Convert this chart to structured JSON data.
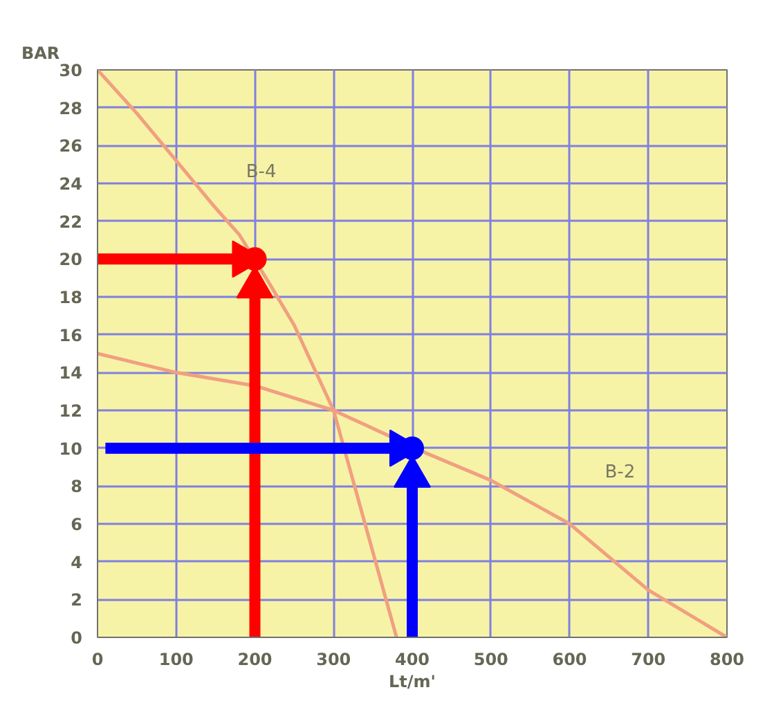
{
  "chart_data": {
    "type": "line",
    "xlabel": "Lt/m'",
    "ylabel": "BAR",
    "xlim": [
      0,
      800
    ],
    "ylim": [
      0,
      30
    ],
    "xticks": [
      0,
      100,
      200,
      300,
      400,
      500,
      600,
      700,
      800
    ],
    "yticks": [
      0,
      2,
      4,
      6,
      8,
      10,
      12,
      14,
      16,
      18,
      20,
      22,
      24,
      26,
      28,
      30
    ],
    "grid": true,
    "series": [
      {
        "color": "#f0a080",
        "x": [
          0,
          50,
          100,
          150,
          180,
          220,
          250,
          300,
          340,
          360,
          380
        ],
        "values": [
          30,
          27.7,
          25.2,
          22.7,
          21.3,
          18.6,
          16.5,
          12,
          6,
          3,
          0
        ]
      },
      {
        "color": "#f0a080",
        "x": [
          0,
          100,
          200,
          300,
          420,
          500,
          600,
          700,
          800
        ],
        "values": [
          15,
          14,
          13.3,
          12,
          9.7,
          8.3,
          6,
          2.5,
          0
        ]
      },
      {
        "color": "#ff0000",
        "x": [
          0,
          185
        ],
        "values": [
          20,
          20
        ],
        "marker": "triangle"
      },
      {
        "color": "#ff0000",
        "x": [
          200,
          200
        ],
        "values": [
          0,
          18.5
        ],
        "marker": "triangle"
      },
      {
        "color": "#0000ff",
        "x": [
          10,
          385
        ],
        "values": [
          10,
          10
        ],
        "marker": "triangle"
      },
      {
        "color": "#0000ff",
        "x": [
          400,
          400
        ],
        "values": [
          0,
          8.5
        ],
        "marker": "triangle"
      },
      {
        "type": "scatter",
        "color": "#ff0000",
        "x": [
          200
        ],
        "values": [
          20
        ],
        "marker": "circle"
      },
      {
        "type": "scatter",
        "color": "#0000ff",
        "x": [
          400
        ],
        "values": [
          10
        ],
        "marker": "circle"
      }
    ],
    "annotations": [
      "B-4",
      "B-2"
    ]
  }
}
